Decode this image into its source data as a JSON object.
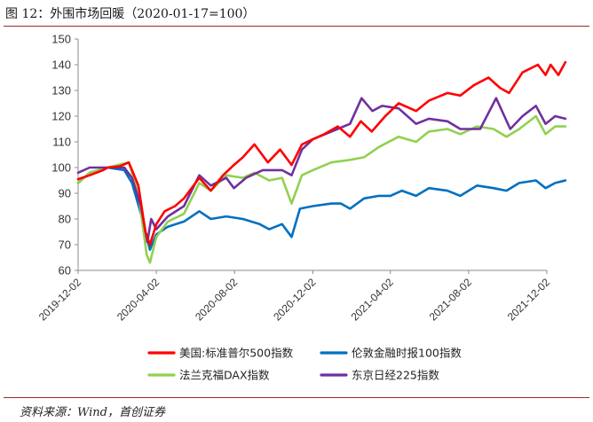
{
  "figure_title": "图 12：外围市场回暖（2020-01-17=100）",
  "source_note": "资料来源：Wind，首创证券",
  "chart_data": {
    "type": "line",
    "title": "",
    "xlabel": "",
    "ylabel": "",
    "ylim": [
      60,
      150
    ],
    "y_ticks": [
      "60",
      "70",
      "80",
      "90",
      "100",
      "110",
      "120",
      "130",
      "140",
      "150"
    ],
    "x_ticks": [
      "2019-12-02",
      "2020-04-02",
      "2020-08-02",
      "2020-12-02",
      "2021-04-02",
      "2021-08-02",
      "2021-12-02"
    ],
    "grid": false,
    "legend_position": "bottom",
    "series": [
      {
        "name": "美国:标准普尔500指数",
        "color": "#ff0000",
        "points": [
          [
            "2019-12-02",
            95.5
          ],
          [
            "2019-12-20",
            97
          ],
          [
            "2020-01-10",
            99
          ],
          [
            "2020-01-17",
            100
          ],
          [
            "2020-02-05",
            100.5
          ],
          [
            "2020-02-19",
            102
          ],
          [
            "2020-03-05",
            93
          ],
          [
            "2020-03-16",
            75
          ],
          [
            "2020-03-23",
            70
          ],
          [
            "2020-04-02",
            78
          ],
          [
            "2020-04-15",
            83
          ],
          [
            "2020-05-01",
            85
          ],
          [
            "2020-05-15",
            88
          ],
          [
            "2020-06-08",
            96
          ],
          [
            "2020-06-26",
            91
          ],
          [
            "2020-07-15",
            97
          ],
          [
            "2020-08-01",
            101
          ],
          [
            "2020-08-15",
            104
          ],
          [
            "2020-09-02",
            109
          ],
          [
            "2020-09-23",
            102
          ],
          [
            "2020-10-12",
            107
          ],
          [
            "2020-10-30",
            101
          ],
          [
            "2020-11-15",
            109
          ],
          [
            "2020-12-02",
            111
          ],
          [
            "2020-12-20",
            113
          ],
          [
            "2021-01-10",
            116
          ],
          [
            "2021-01-29",
            112
          ],
          [
            "2021-02-15",
            118
          ],
          [
            "2021-03-04",
            114
          ],
          [
            "2021-03-25",
            120
          ],
          [
            "2021-04-15",
            125
          ],
          [
            "2021-05-12",
            122
          ],
          [
            "2021-06-01",
            126
          ],
          [
            "2021-06-30",
            129
          ],
          [
            "2021-07-20",
            128
          ],
          [
            "2021-08-10",
            132
          ],
          [
            "2021-09-02",
            135
          ],
          [
            "2021-09-20",
            131
          ],
          [
            "2021-10-04",
            129
          ],
          [
            "2021-10-25",
            137
          ],
          [
            "2021-11-18",
            140
          ],
          [
            "2021-11-30",
            136
          ],
          [
            "2021-12-08",
            140
          ],
          [
            "2021-12-20",
            136
          ],
          [
            "2021-12-31",
            141
          ]
        ]
      },
      {
        "name": "伦敦金融时报100指数",
        "color": "#0070c0",
        "points": [
          [
            "2019-12-02",
            94
          ],
          [
            "2019-12-20",
            98
          ],
          [
            "2020-01-17",
            100
          ],
          [
            "2020-02-12",
            99
          ],
          [
            "2020-02-24",
            94
          ],
          [
            "2020-03-09",
            82
          ],
          [
            "2020-03-23",
            68
          ],
          [
            "2020-04-02",
            74
          ],
          [
            "2020-04-20",
            77
          ],
          [
            "2020-05-15",
            79
          ],
          [
            "2020-06-08",
            83
          ],
          [
            "2020-06-26",
            80
          ],
          [
            "2020-07-20",
            81
          ],
          [
            "2020-08-15",
            80
          ],
          [
            "2020-09-10",
            78
          ],
          [
            "2020-09-25",
            76
          ],
          [
            "2020-10-15",
            78
          ],
          [
            "2020-10-30",
            73
          ],
          [
            "2020-11-12",
            84
          ],
          [
            "2020-12-02",
            85
          ],
          [
            "2020-12-31",
            86
          ],
          [
            "2021-01-15",
            86
          ],
          [
            "2021-01-29",
            84
          ],
          [
            "2021-02-20",
            88
          ],
          [
            "2021-03-15",
            89
          ],
          [
            "2021-04-02",
            89
          ],
          [
            "2021-04-20",
            91
          ],
          [
            "2021-05-12",
            89
          ],
          [
            "2021-06-01",
            92
          ],
          [
            "2021-06-30",
            91
          ],
          [
            "2021-07-20",
            89
          ],
          [
            "2021-08-15",
            93
          ],
          [
            "2021-09-10",
            92
          ],
          [
            "2021-09-30",
            91
          ],
          [
            "2021-10-20",
            94
          ],
          [
            "2021-11-15",
            95
          ],
          [
            "2021-11-30",
            92
          ],
          [
            "2021-12-15",
            94
          ],
          [
            "2021-12-31",
            95
          ]
        ]
      },
      {
        "name": "法兰克福DAX指数",
        "color": "#92d050",
        "points": [
          [
            "2019-12-02",
            94
          ],
          [
            "2019-12-20",
            98
          ],
          [
            "2020-01-17",
            100
          ],
          [
            "2020-02-19",
            102
          ],
          [
            "2020-03-05",
            90
          ],
          [
            "2020-03-18",
            66
          ],
          [
            "2020-03-23",
            63
          ],
          [
            "2020-04-02",
            73
          ],
          [
            "2020-04-20",
            79
          ],
          [
            "2020-05-15",
            82
          ],
          [
            "2020-06-08",
            94
          ],
          [
            "2020-06-26",
            91
          ],
          [
            "2020-07-20",
            97
          ],
          [
            "2020-08-15",
            96
          ],
          [
            "2020-09-02",
            98
          ],
          [
            "2020-09-25",
            95
          ],
          [
            "2020-10-15",
            96
          ],
          [
            "2020-10-30",
            86
          ],
          [
            "2020-11-15",
            97
          ],
          [
            "2020-12-02",
            99
          ],
          [
            "2020-12-31",
            102
          ],
          [
            "2021-01-29",
            103
          ],
          [
            "2021-02-20",
            104
          ],
          [
            "2021-03-15",
            108
          ],
          [
            "2021-04-15",
            112
          ],
          [
            "2021-05-12",
            110
          ],
          [
            "2021-06-01",
            114
          ],
          [
            "2021-06-30",
            115
          ],
          [
            "2021-07-20",
            113
          ],
          [
            "2021-08-15",
            116
          ],
          [
            "2021-09-10",
            115
          ],
          [
            "2021-09-30",
            112
          ],
          [
            "2021-10-20",
            115
          ],
          [
            "2021-11-15",
            120
          ],
          [
            "2021-11-30",
            113
          ],
          [
            "2021-12-15",
            116
          ],
          [
            "2021-12-31",
            116
          ]
        ]
      },
      {
        "name": "东京日经225指数",
        "color": "#7030a0",
        "points": [
          [
            "2019-12-02",
            98
          ],
          [
            "2019-12-20",
            100
          ],
          [
            "2020-01-17",
            100
          ],
          [
            "2020-02-12",
            100
          ],
          [
            "2020-02-24",
            96
          ],
          [
            "2020-03-09",
            85
          ],
          [
            "2020-03-19",
            71
          ],
          [
            "2020-03-25",
            80
          ],
          [
            "2020-04-02",
            76
          ],
          [
            "2020-04-20",
            81
          ],
          [
            "2020-05-15",
            85
          ],
          [
            "2020-06-08",
            97
          ],
          [
            "2020-06-26",
            93
          ],
          [
            "2020-07-20",
            96
          ],
          [
            "2020-08-01",
            92
          ],
          [
            "2020-08-20",
            96
          ],
          [
            "2020-09-15",
            99
          ],
          [
            "2020-10-15",
            99
          ],
          [
            "2020-10-30",
            97
          ],
          [
            "2020-11-15",
            107
          ],
          [
            "2020-12-02",
            111
          ],
          [
            "2020-12-31",
            114
          ],
          [
            "2021-01-29",
            117
          ],
          [
            "2021-02-16",
            127
          ],
          [
            "2021-03-05",
            122
          ],
          [
            "2021-03-20",
            124
          ],
          [
            "2021-04-15",
            123
          ],
          [
            "2021-05-12",
            117
          ],
          [
            "2021-06-01",
            119
          ],
          [
            "2021-06-30",
            118
          ],
          [
            "2021-07-20",
            115
          ],
          [
            "2021-08-20",
            115
          ],
          [
            "2021-09-14",
            127
          ],
          [
            "2021-10-06",
            115
          ],
          [
            "2021-10-25",
            120
          ],
          [
            "2021-11-15",
            124
          ],
          [
            "2021-11-30",
            117
          ],
          [
            "2021-12-15",
            120
          ],
          [
            "2021-12-31",
            119
          ]
        ]
      }
    ]
  }
}
